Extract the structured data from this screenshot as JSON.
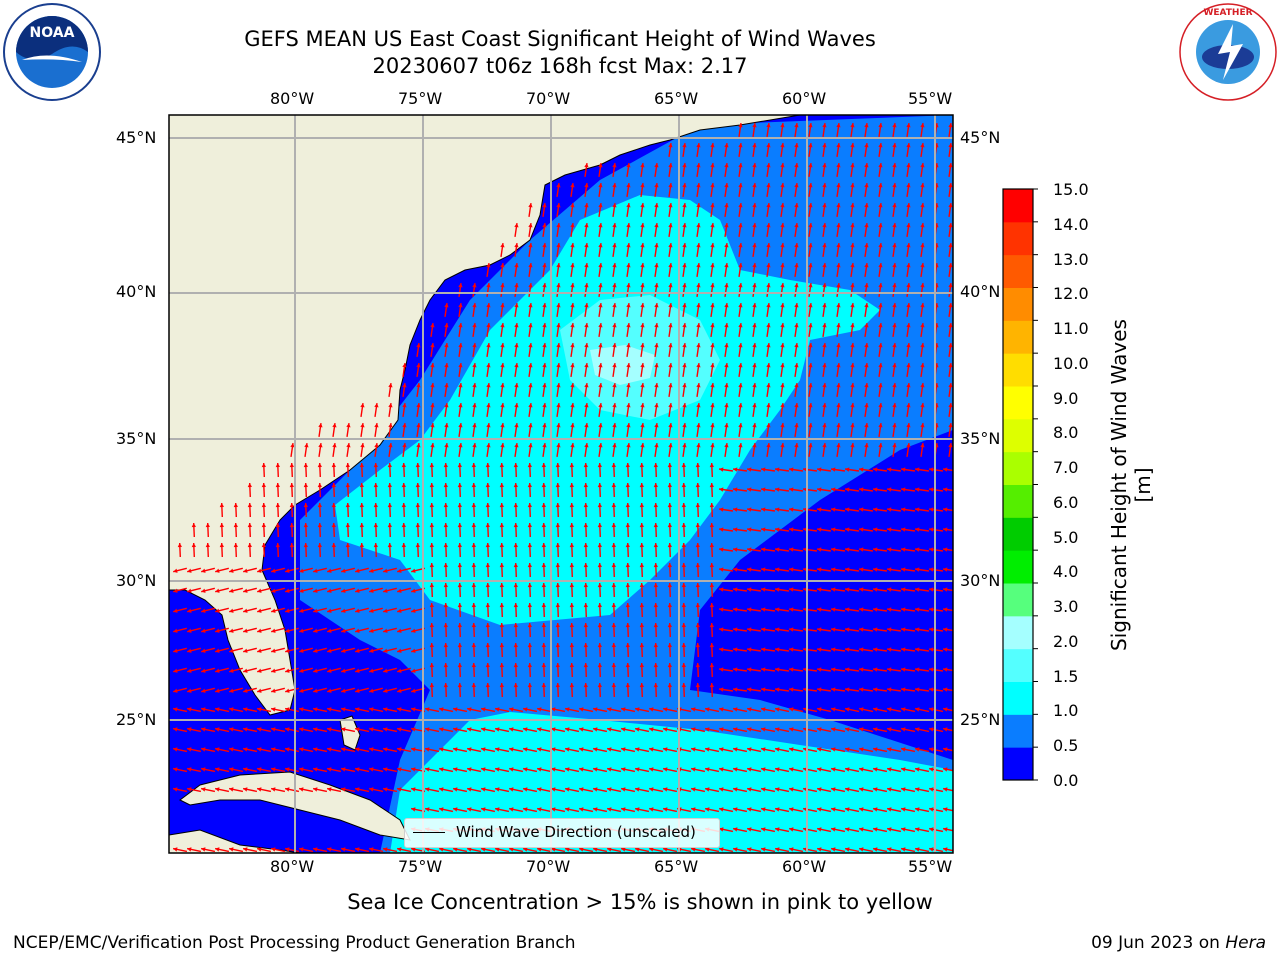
{
  "title": {
    "line1": "GEFS MEAN US East Coast Significant Height of Wind Waves",
    "line2": "20230607 t06z 168h fcst   Max: 2.17"
  },
  "logos": {
    "left": "noaa-logo",
    "right": "nws-logo"
  },
  "map": {
    "lon_ticks": [
      "80°W",
      "75°W",
      "70°W",
      "65°W",
      "60°W",
      "55°W"
    ],
    "lat_ticks": [
      "45°N",
      "40°N",
      "35°N",
      "30°N",
      "25°N"
    ],
    "legend_label": "Wind Wave Direction (unscaled)",
    "vector_color": "#ff0000",
    "land_color": "#efefdb",
    "field": {
      "below_0_5": "#0000ff",
      "0_5_to_1_0": "#0a7dff",
      "1_0_to_1_5": "#00ffff",
      "1_5_to_2_0": "#54ffff",
      "2_0_to_3_0": "#a5ffff"
    }
  },
  "colorbar": {
    "label": "Significant Height of Wind Waves [m]",
    "ticks": [
      "15.0",
      "14.0",
      "13.0",
      "12.0",
      "11.0",
      "10.0",
      "9.0",
      "8.0",
      "7.0",
      "6.0",
      "5.0",
      "4.0",
      "3.0",
      "2.0",
      "1.5",
      "1.0",
      "0.5",
      "0.0"
    ],
    "colors": [
      "#0000ff",
      "#0a7dff",
      "#00ffff",
      "#54ffff",
      "#a5ffff",
      "#56ff7d",
      "#00ee00",
      "#00cc00",
      "#55ee00",
      "#aaff00",
      "#ddff00",
      "#ffff00",
      "#ffdd00",
      "#ffb400",
      "#ff8c00",
      "#ff5a00",
      "#ff3300",
      "#ff0000"
    ]
  },
  "footnote": "Sea Ice Concentration > 15% is shown in pink to yellow",
  "footer": {
    "credit": "NCEP/EMC/Verification Post Processing Product Generation Branch",
    "date": "09 Jun 2023 on",
    "host": "Hera"
  }
}
